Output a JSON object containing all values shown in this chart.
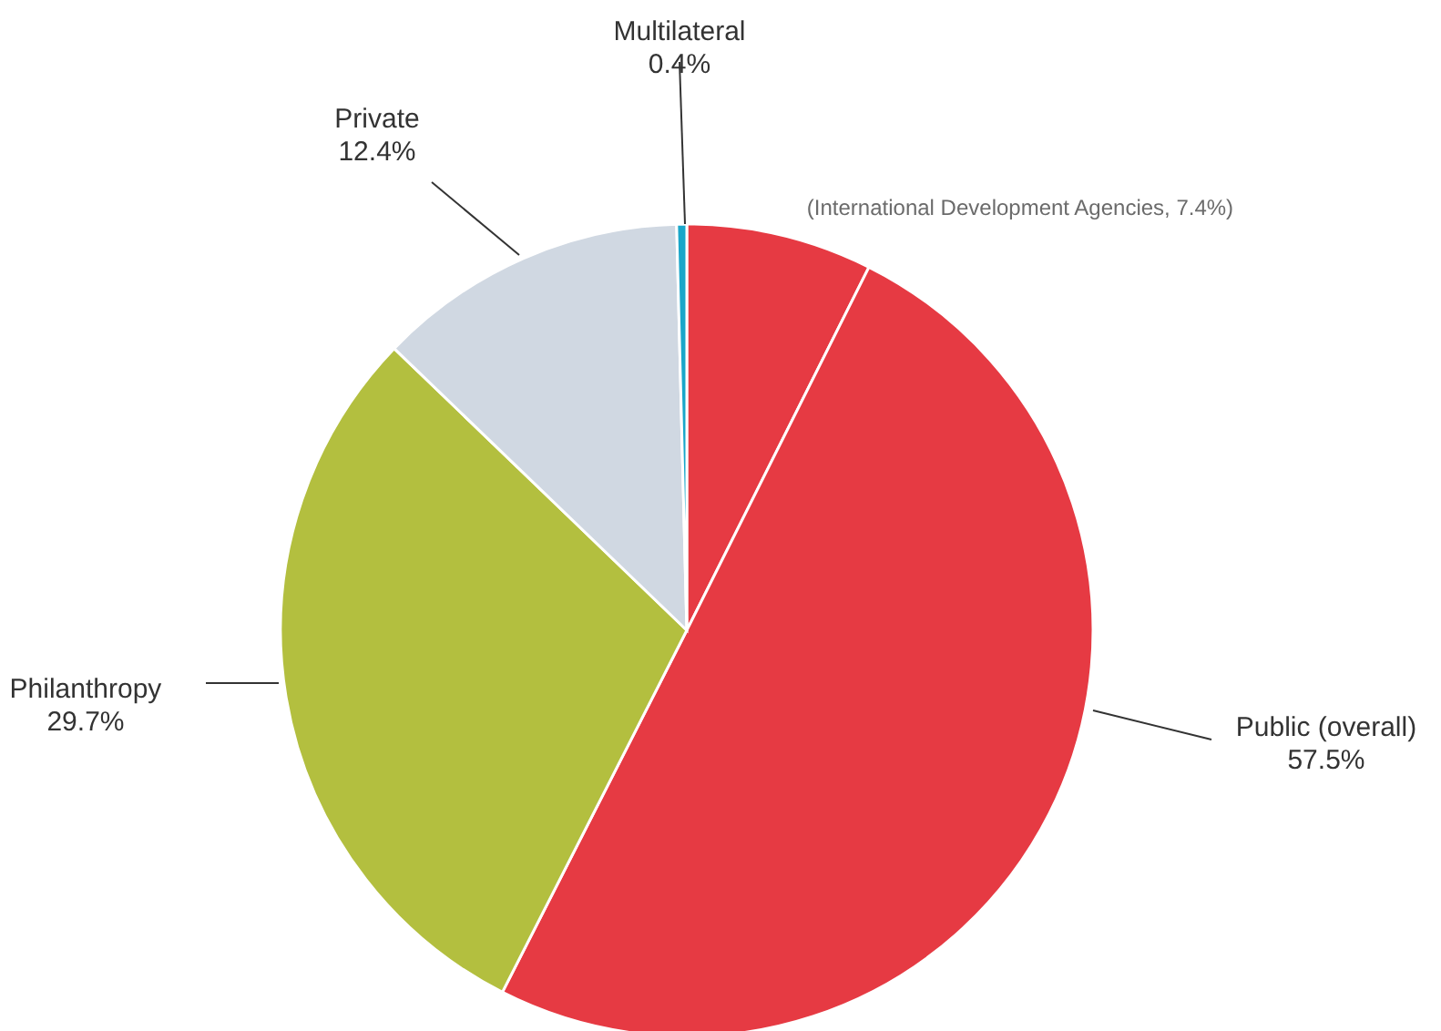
{
  "chart_data": {
    "type": "pie",
    "categories": [
      "(International Development Agencies, 7.4%)",
      "Public (overall)",
      "Philanthropy",
      "Private",
      "Multilateral"
    ],
    "values": [
      7.4,
      50.1,
      29.7,
      12.4,
      0.4
    ],
    "value_labels": [
      null,
      null,
      "29.7%",
      "12.4%",
      "0.4%"
    ],
    "annotations": [
      "57.5%"
    ],
    "colors": [
      "#e63a43",
      "#e63a43",
      "#b3bf3f",
      "#d0d8e2",
      "#1aa6c9"
    ],
    "legend": false
  }
}
